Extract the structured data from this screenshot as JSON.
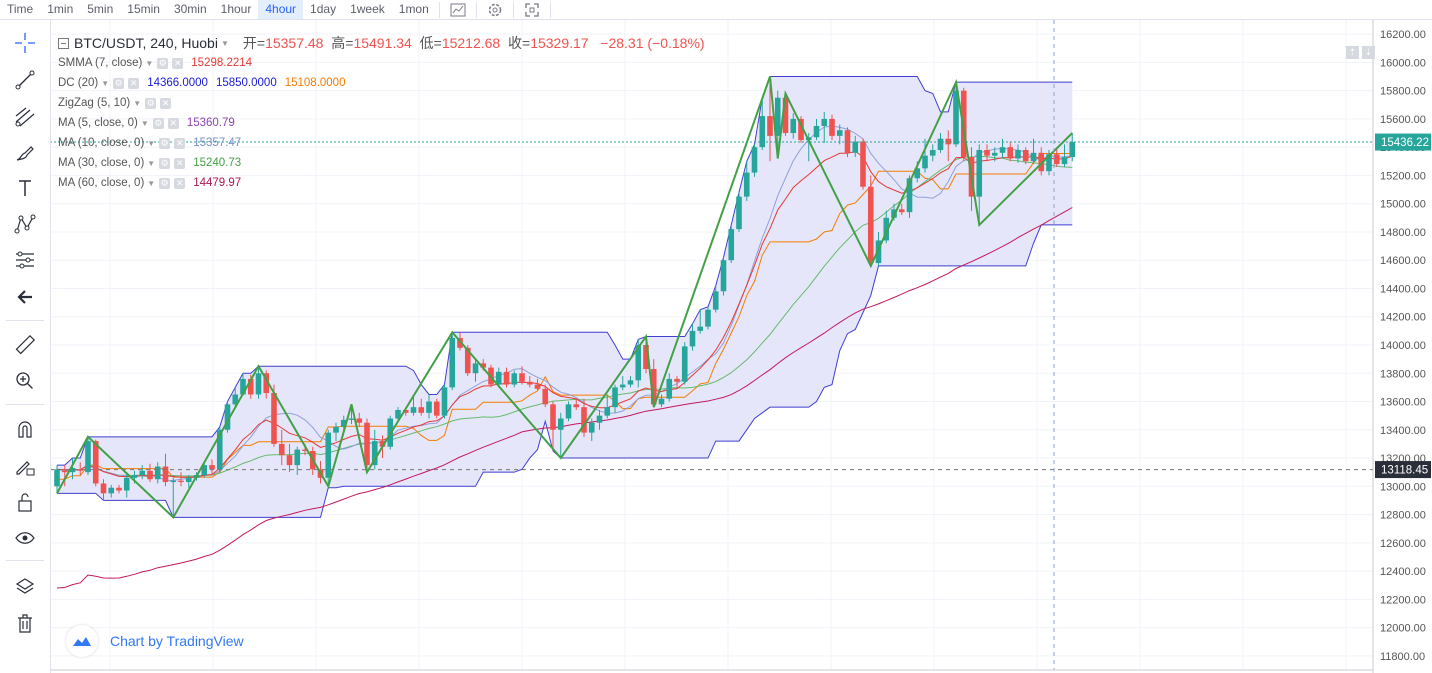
{
  "timeframes": [
    "Time",
    "1min",
    "5min",
    "15min",
    "30min",
    "1hour",
    "4hour",
    "1day",
    "1week",
    "1mon"
  ],
  "active_timeframe": "4hour",
  "topbar_icons": [
    "chart-style-icon",
    "settings-icon",
    "fullscreen-icon"
  ],
  "tools": [
    "crosshair-icon",
    "trend-line-icon",
    "fib-icon",
    "brush-icon",
    "text-icon",
    "pattern-icon",
    "forecast-icon",
    "back-arrow-icon",
    "ruler-icon",
    "zoom-icon",
    "magnet-icon",
    "lock-drawing-icon",
    "lock-icon",
    "eye-icon",
    "layers-icon",
    "trash-icon"
  ],
  "legend": {
    "symbol": "BTC/USDT, 240, Huobi",
    "open_label": "开=",
    "open": "15357.48",
    "high_label": "高=",
    "high": "15491.34",
    "low_label": "低=",
    "low": "15212.68",
    "close_label": "收=",
    "close": "15329.17",
    "change": "−28.31 (−0.18%)",
    "indicators": [
      {
        "name": "SMMA (7, close)",
        "values": [
          {
            "v": "15298.2214",
            "color": "#e53935"
          }
        ]
      },
      {
        "name": "DC (20)",
        "values": [
          {
            "v": "14366.0000",
            "color": "#1a1ad6"
          },
          {
            "v": "15850.0000",
            "color": "#1a1ad6"
          },
          {
            "v": "15108.0000",
            "color": "#f57c00"
          }
        ]
      },
      {
        "name": "ZigZag (5, 10)",
        "values": []
      },
      {
        "name": "MA (5, close, 0)",
        "values": [
          {
            "v": "15360.79",
            "color": "#8e44ad"
          }
        ]
      },
      {
        "name": "MA (10, close, 0)",
        "values": [
          {
            "v": "15357.47",
            "color": "#7b8fc7"
          }
        ]
      },
      {
        "name": "MA (30, close, 0)",
        "values": [
          {
            "v": "15240.73",
            "color": "#43a047"
          }
        ]
      },
      {
        "name": "MA (60, close, 0)",
        "values": [
          {
            "v": "14479.97",
            "color": "#ad1457"
          }
        ]
      }
    ]
  },
  "brand": "Chart by TradingView",
  "price_badges": {
    "last": "15436.22",
    "crosshair": "13118.45"
  },
  "colors": {
    "up": "#26a69a",
    "down": "#ef5350",
    "zigzag": "#43a047",
    "channel_fill": "#e6e6fb",
    "channel_line": "#3f3fd1",
    "dc_mid": "#f57c00",
    "smma": "#e53935",
    "ma10": "#8fa0d8",
    "ma30": "#66bb6a",
    "ma60": "#c2185b"
  },
  "chart_data": {
    "type": "candlestick",
    "ylim": [
      11700,
      16300
    ],
    "y_ticks": [
      11800,
      12000,
      12200,
      12400,
      12600,
      12800,
      13000,
      13200,
      13400,
      13600,
      13800,
      14000,
      14200,
      14400,
      14600,
      14800,
      15000,
      15200,
      15400,
      15600,
      15800,
      16000,
      16200
    ],
    "last_price": 15436.22,
    "crosshair_price": 13118.45,
    "candles": [
      {
        "o": 13000,
        "h": 13150,
        "l": 12950,
        "c": 13120
      },
      {
        "o": 13110,
        "h": 13150,
        "l": 13000,
        "c": 13100
      },
      {
        "o": 13100,
        "h": 13200,
        "l": 13050,
        "c": 13130
      },
      {
        "o": 13120,
        "h": 13170,
        "l": 13080,
        "c": 13110
      },
      {
        "o": 13100,
        "h": 13350,
        "l": 13080,
        "c": 13320
      },
      {
        "o": 13320,
        "h": 13330,
        "l": 13000,
        "c": 13020
      },
      {
        "o": 13020,
        "h": 13050,
        "l": 12900,
        "c": 12950
      },
      {
        "o": 12950,
        "h": 13010,
        "l": 12920,
        "c": 12990
      },
      {
        "o": 12990,
        "h": 13010,
        "l": 12950,
        "c": 12970
      },
      {
        "o": 12970,
        "h": 13100,
        "l": 12920,
        "c": 13060
      },
      {
        "o": 13060,
        "h": 13110,
        "l": 13020,
        "c": 13080
      },
      {
        "o": 13080,
        "h": 13150,
        "l": 13050,
        "c": 13110
      },
      {
        "o": 13110,
        "h": 13160,
        "l": 13030,
        "c": 13050
      },
      {
        "o": 13050,
        "h": 13170,
        "l": 13020,
        "c": 13140
      },
      {
        "o": 13140,
        "h": 13230,
        "l": 13000,
        "c": 13030
      },
      {
        "o": 13030,
        "h": 13060,
        "l": 12780,
        "c": 13040
      },
      {
        "o": 13040,
        "h": 13100,
        "l": 13000,
        "c": 13030
      },
      {
        "o": 13030,
        "h": 13080,
        "l": 12990,
        "c": 13060
      },
      {
        "o": 13060,
        "h": 13100,
        "l": 13040,
        "c": 13080
      },
      {
        "o": 13080,
        "h": 13170,
        "l": 13060,
        "c": 13150
      },
      {
        "o": 13150,
        "h": 13190,
        "l": 13080,
        "c": 13120
      },
      {
        "o": 13120,
        "h": 13420,
        "l": 13100,
        "c": 13400
      },
      {
        "o": 13400,
        "h": 13600,
        "l": 13380,
        "c": 13580
      },
      {
        "o": 13580,
        "h": 13700,
        "l": 13560,
        "c": 13650
      },
      {
        "o": 13650,
        "h": 13800,
        "l": 13640,
        "c": 13760
      },
      {
        "o": 13760,
        "h": 13790,
        "l": 13620,
        "c": 13650
      },
      {
        "o": 13650,
        "h": 13850,
        "l": 13620,
        "c": 13800
      },
      {
        "o": 13800,
        "h": 13820,
        "l": 13620,
        "c": 13660
      },
      {
        "o": 13660,
        "h": 13720,
        "l": 13280,
        "c": 13300
      },
      {
        "o": 13300,
        "h": 13400,
        "l": 13150,
        "c": 13220
      },
      {
        "o": 13220,
        "h": 13300,
        "l": 13100,
        "c": 13150
      },
      {
        "o": 13150,
        "h": 13280,
        "l": 13080,
        "c": 13260
      },
      {
        "o": 13260,
        "h": 13300,
        "l": 13220,
        "c": 13250
      },
      {
        "o": 13250,
        "h": 13280,
        "l": 13080,
        "c": 13120
      },
      {
        "o": 13120,
        "h": 13180,
        "l": 13020,
        "c": 13060
      },
      {
        "o": 13060,
        "h": 13400,
        "l": 13000,
        "c": 13380
      },
      {
        "o": 13380,
        "h": 13450,
        "l": 13320,
        "c": 13420
      },
      {
        "o": 13420,
        "h": 13500,
        "l": 13380,
        "c": 13470
      },
      {
        "o": 13470,
        "h": 13580,
        "l": 13440,
        "c": 13480
      },
      {
        "o": 13480,
        "h": 13520,
        "l": 13420,
        "c": 13450
      },
      {
        "o": 13450,
        "h": 13480,
        "l": 13100,
        "c": 13150
      },
      {
        "o": 13150,
        "h": 13400,
        "l": 13120,
        "c": 13320
      },
      {
        "o": 13320,
        "h": 13360,
        "l": 13200,
        "c": 13280
      },
      {
        "o": 13280,
        "h": 13500,
        "l": 13260,
        "c": 13480
      },
      {
        "o": 13480,
        "h": 13560,
        "l": 13460,
        "c": 13540
      },
      {
        "o": 13540,
        "h": 13560,
        "l": 13500,
        "c": 13520
      },
      {
        "o": 13520,
        "h": 13640,
        "l": 13500,
        "c": 13560
      },
      {
        "o": 13560,
        "h": 13620,
        "l": 13500,
        "c": 13520
      },
      {
        "o": 13520,
        "h": 13650,
        "l": 13480,
        "c": 13600
      },
      {
        "o": 13600,
        "h": 13620,
        "l": 13480,
        "c": 13500
      },
      {
        "o": 13500,
        "h": 13720,
        "l": 13480,
        "c": 13700
      },
      {
        "o": 13700,
        "h": 14090,
        "l": 13680,
        "c": 14050
      },
      {
        "o": 14050,
        "h": 14090,
        "l": 13960,
        "c": 13980
      },
      {
        "o": 13980,
        "h": 14000,
        "l": 13780,
        "c": 13800
      },
      {
        "o": 13800,
        "h": 13900,
        "l": 13740,
        "c": 13870
      },
      {
        "o": 13870,
        "h": 13900,
        "l": 13820,
        "c": 13840
      },
      {
        "o": 13840,
        "h": 13860,
        "l": 13700,
        "c": 13720
      },
      {
        "o": 13720,
        "h": 13840,
        "l": 13700,
        "c": 13810
      },
      {
        "o": 13810,
        "h": 13840,
        "l": 13700,
        "c": 13720
      },
      {
        "o": 13720,
        "h": 13820,
        "l": 13700,
        "c": 13800
      },
      {
        "o": 13800,
        "h": 13850,
        "l": 13720,
        "c": 13740
      },
      {
        "o": 13740,
        "h": 13780,
        "l": 13700,
        "c": 13720
      },
      {
        "o": 13720,
        "h": 13760,
        "l": 13680,
        "c": 13690
      },
      {
        "o": 13690,
        "h": 13720,
        "l": 13560,
        "c": 13580
      },
      {
        "o": 13580,
        "h": 13600,
        "l": 13250,
        "c": 13400
      },
      {
        "o": 13400,
        "h": 13520,
        "l": 13200,
        "c": 13480
      },
      {
        "o": 13480,
        "h": 13600,
        "l": 13460,
        "c": 13580
      },
      {
        "o": 13580,
        "h": 13620,
        "l": 13540,
        "c": 13560
      },
      {
        "o": 13560,
        "h": 13620,
        "l": 13350,
        "c": 13380
      },
      {
        "o": 13380,
        "h": 13480,
        "l": 13320,
        "c": 13450
      },
      {
        "o": 13450,
        "h": 13540,
        "l": 13400,
        "c": 13500
      },
      {
        "o": 13500,
        "h": 13650,
        "l": 13480,
        "c": 13560
      },
      {
        "o": 13560,
        "h": 13720,
        "l": 13520,
        "c": 13700
      },
      {
        "o": 13700,
        "h": 13780,
        "l": 13680,
        "c": 13720
      },
      {
        "o": 13720,
        "h": 13780,
        "l": 13700,
        "c": 13750
      },
      {
        "o": 13750,
        "h": 14040,
        "l": 13700,
        "c": 14000
      },
      {
        "o": 14000,
        "h": 14060,
        "l": 13800,
        "c": 13830
      },
      {
        "o": 13830,
        "h": 13900,
        "l": 13560,
        "c": 13580
      },
      {
        "o": 13580,
        "h": 13650,
        "l": 13560,
        "c": 13620
      },
      {
        "o": 13620,
        "h": 13800,
        "l": 13600,
        "c": 13760
      },
      {
        "o": 13760,
        "h": 13780,
        "l": 13700,
        "c": 13740
      },
      {
        "o": 13740,
        "h": 14020,
        "l": 13720,
        "c": 13990
      },
      {
        "o": 13990,
        "h": 14150,
        "l": 13960,
        "c": 14100
      },
      {
        "o": 14100,
        "h": 14250,
        "l": 14080,
        "c": 14130
      },
      {
        "o": 14130,
        "h": 14270,
        "l": 14110,
        "c": 14250
      },
      {
        "o": 14250,
        "h": 14420,
        "l": 14230,
        "c": 14380
      },
      {
        "o": 14380,
        "h": 14620,
        "l": 14350,
        "c": 14600
      },
      {
        "o": 14600,
        "h": 14850,
        "l": 14580,
        "c": 14820
      },
      {
        "o": 14820,
        "h": 15080,
        "l": 14800,
        "c": 15050
      },
      {
        "o": 15050,
        "h": 15300,
        "l": 15020,
        "c": 15220
      },
      {
        "o": 15220,
        "h": 15420,
        "l": 15190,
        "c": 15400
      },
      {
        "o": 15400,
        "h": 15750,
        "l": 15380,
        "c": 15620
      },
      {
        "o": 15620,
        "h": 15900,
        "l": 15300,
        "c": 15480
      },
      {
        "o": 15480,
        "h": 15800,
        "l": 15320,
        "c": 15750
      },
      {
        "o": 15750,
        "h": 15780,
        "l": 15480,
        "c": 15500
      },
      {
        "o": 15500,
        "h": 15640,
        "l": 15460,
        "c": 15600
      },
      {
        "o": 15600,
        "h": 15620,
        "l": 15430,
        "c": 15450
      },
      {
        "o": 15450,
        "h": 15500,
        "l": 15300,
        "c": 15470
      },
      {
        "o": 15470,
        "h": 15600,
        "l": 15450,
        "c": 15550
      },
      {
        "o": 15550,
        "h": 15650,
        "l": 15430,
        "c": 15600
      },
      {
        "o": 15600,
        "h": 15630,
        "l": 15450,
        "c": 15480
      },
      {
        "o": 15480,
        "h": 15560,
        "l": 15420,
        "c": 15520
      },
      {
        "o": 15520,
        "h": 15540,
        "l": 15330,
        "c": 15360
      },
      {
        "o": 15360,
        "h": 15480,
        "l": 15330,
        "c": 15440
      },
      {
        "o": 15440,
        "h": 15460,
        "l": 15100,
        "c": 15120
      },
      {
        "o": 15120,
        "h": 15200,
        "l": 14560,
        "c": 14580
      },
      {
        "o": 14580,
        "h": 14800,
        "l": 14560,
        "c": 14740
      },
      {
        "o": 14740,
        "h": 14950,
        "l": 14720,
        "c": 14900
      },
      {
        "o": 14900,
        "h": 15000,
        "l": 14880,
        "c": 14960
      },
      {
        "o": 14960,
        "h": 15000,
        "l": 14920,
        "c": 14940
      },
      {
        "o": 14940,
        "h": 15200,
        "l": 14900,
        "c": 15180
      },
      {
        "o": 15180,
        "h": 15300,
        "l": 15150,
        "c": 15250
      },
      {
        "o": 15250,
        "h": 15460,
        "l": 15220,
        "c": 15340
      },
      {
        "o": 15340,
        "h": 15420,
        "l": 15300,
        "c": 15380
      },
      {
        "o": 15380,
        "h": 15500,
        "l": 15360,
        "c": 15460
      },
      {
        "o": 15460,
        "h": 15520,
        "l": 15300,
        "c": 15420
      },
      {
        "o": 15420,
        "h": 15860,
        "l": 15400,
        "c": 15800
      },
      {
        "o": 15800,
        "h": 15820,
        "l": 15300,
        "c": 15330
      },
      {
        "o": 15330,
        "h": 15400,
        "l": 14950,
        "c": 15050
      },
      {
        "o": 15050,
        "h": 15420,
        "l": 14850,
        "c": 15380
      },
      {
        "o": 15380,
        "h": 15420,
        "l": 15300,
        "c": 15340
      },
      {
        "o": 15340,
        "h": 15400,
        "l": 15300,
        "c": 15360
      },
      {
        "o": 15360,
        "h": 15460,
        "l": 15320,
        "c": 15400
      },
      {
        "o": 15400,
        "h": 15440,
        "l": 15300,
        "c": 15320
      },
      {
        "o": 15320,
        "h": 15420,
        "l": 15290,
        "c": 15380
      },
      {
        "o": 15380,
        "h": 15400,
        "l": 15280,
        "c": 15300
      },
      {
        "o": 15300,
        "h": 15460,
        "l": 15280,
        "c": 15360
      },
      {
        "o": 15360,
        "h": 15400,
        "l": 15200,
        "c": 15230
      },
      {
        "o": 15230,
        "h": 15380,
        "l": 15200,
        "c": 15350
      },
      {
        "o": 15350,
        "h": 15400,
        "l": 15260,
        "c": 15280
      },
      {
        "o": 15280,
        "h": 15420,
        "l": 15260,
        "c": 15330
      },
      {
        "o": 15330,
        "h": 15500,
        "l": 15300,
        "c": 15436
      }
    ]
  }
}
